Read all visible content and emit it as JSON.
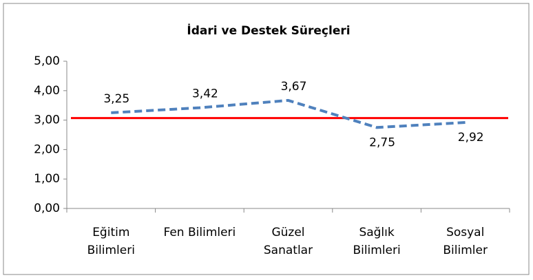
{
  "chart_data": {
    "type": "line",
    "title": "İdari ve Destek Süreçleri",
    "categories": [
      "Eğitim Bilimleri",
      "Fen Bilimleri",
      "Güzel Sanatlar",
      "Sağlık Bilimleri",
      "Sosyal Bilimler"
    ],
    "values": [
      3.25,
      3.42,
      3.67,
      2.75,
      2.92
    ],
    "value_labels": [
      "3,25",
      "3,42",
      "3,67",
      "2,75",
      "2,92"
    ],
    "color": "#4f81bd",
    "reference_line": {
      "value": 3.07,
      "color": "#ff0000"
    },
    "ylim": [
      0,
      5
    ],
    "yticks": [
      {
        "value": 0,
        "label": "0,00"
      },
      {
        "value": 1,
        "label": "1,00"
      },
      {
        "value": 2,
        "label": "2,00"
      },
      {
        "value": 3,
        "label": "3,00"
      },
      {
        "value": 4,
        "label": "4,00"
      },
      {
        "value": 5,
        "label": "5,00"
      }
    ],
    "grid": false
  }
}
